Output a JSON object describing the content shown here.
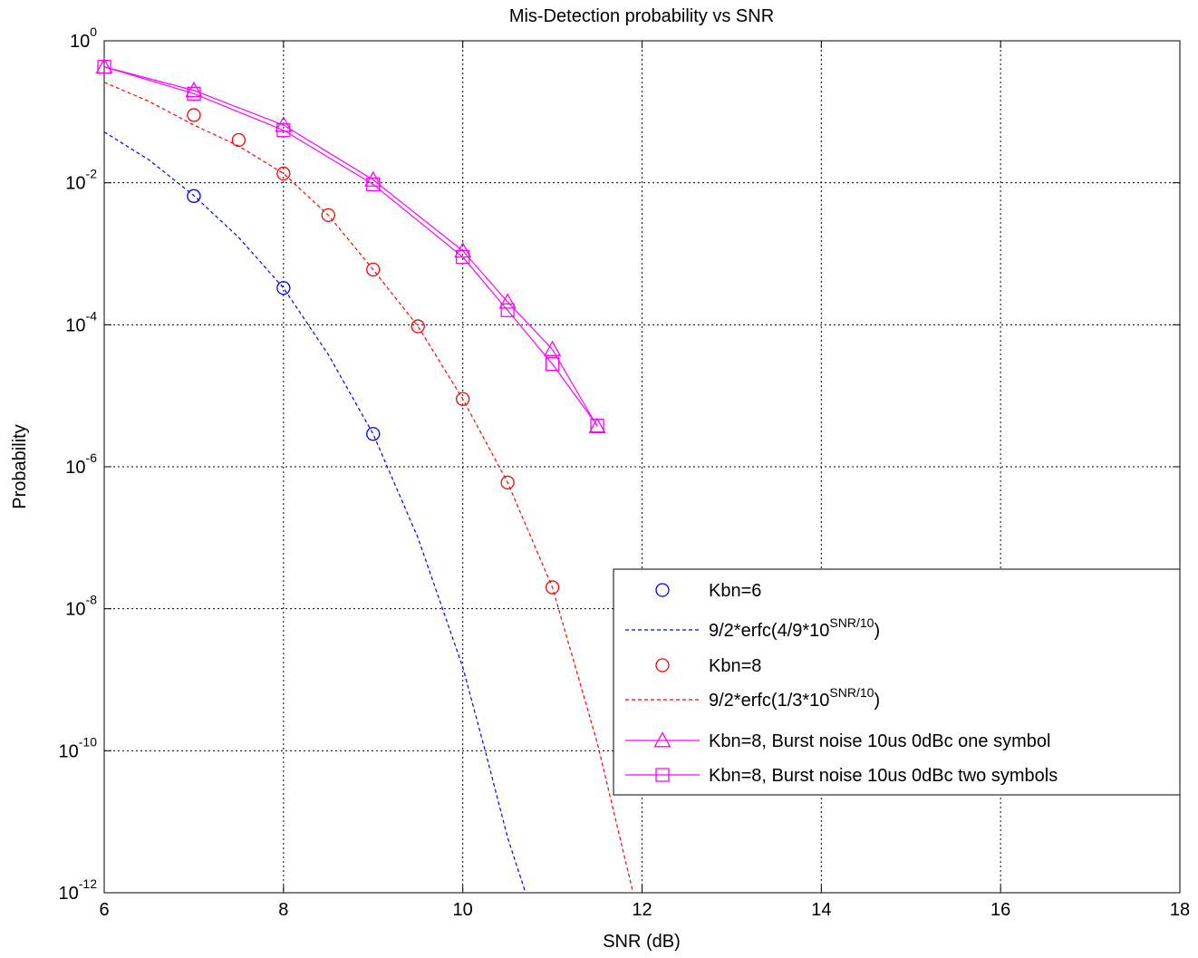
{
  "chart_data": {
    "type": "line",
    "title": "Mis-Detection probability vs SNR",
    "xlabel": "SNR (dB)",
    "ylabel": "Probability",
    "xlim": [
      6,
      18
    ],
    "ylim": [
      1e-12,
      1
    ],
    "y_scale": "log",
    "grid": true,
    "legend_position": "right",
    "x_ticks": [
      "6",
      "8",
      "10",
      "12",
      "14",
      "16",
      "18"
    ],
    "y_ticks": [
      {
        "base": "10",
        "exp": "0",
        "value": 1
      },
      {
        "base": "10",
        "exp": "-2",
        "value": 0.01
      },
      {
        "base": "10",
        "exp": "-4",
        "value": 0.0001
      },
      {
        "base": "10",
        "exp": "-6",
        "value": 1e-06
      },
      {
        "base": "10",
        "exp": "-8",
        "value": 1e-08
      },
      {
        "base": "10",
        "exp": "-10",
        "value": 1e-10
      },
      {
        "base": "10",
        "exp": "-12",
        "value": 1e-12
      }
    ],
    "series": [
      {
        "name": "Kbn=6",
        "color": "#0000ff",
        "style": "markers",
        "marker": "circle",
        "x": [
          7,
          8,
          9
        ],
        "y": [
          0.0065,
          0.00033,
          2.9e-06
        ]
      },
      {
        "name_parts": [
          "9/2*erfc(4/9*10",
          "SNR/10",
          ")"
        ],
        "color": "#0000ff",
        "style": "dashed",
        "x": [
          6,
          6.5,
          7,
          7.5,
          8,
          8.5,
          9,
          9.5,
          10,
          10.25,
          10.5,
          10.7
        ],
        "y": [
          0.052,
          0.021,
          0.0066,
          0.0017,
          0.00033,
          3.8e-05,
          2.9e-06,
          1e-07,
          1.5e-09,
          1e-10,
          6e-12,
          1e-12
        ]
      },
      {
        "name": "Kbn=8",
        "color": "#ff0000",
        "style": "markers",
        "marker": "circle",
        "x": [
          7,
          7.5,
          8,
          8.5,
          9,
          9.5,
          10,
          10.5,
          11
        ],
        "y": [
          0.09,
          0.04,
          0.0135,
          0.0035,
          0.0006,
          9.5e-05,
          9e-06,
          6e-07,
          2e-08
        ]
      },
      {
        "name_parts": [
          "9/2*erfc(1/3*10",
          "SNR/10",
          ")"
        ],
        "color": "#ff0000",
        "style": "dashed",
        "x": [
          6,
          6.5,
          7,
          7.5,
          8,
          8.5,
          9,
          9.5,
          10,
          10.5,
          11,
          11.5,
          11.9
        ],
        "y": [
          0.26,
          0.14,
          0.065,
          0.033,
          0.0135,
          0.0035,
          0.0006,
          9.5e-05,
          9e-06,
          6e-07,
          2e-08,
          1.3e-10,
          1e-12
        ]
      },
      {
        "name": "Kbn=8, Burst noise 10us 0dBc one symbol",
        "color": "#ff00ff",
        "style": "solid",
        "marker": "triangle",
        "x": [
          6,
          7,
          8,
          9,
          10,
          10.5,
          11,
          11.5
        ],
        "y": [
          0.43,
          0.2,
          0.065,
          0.011,
          0.0011,
          0.00021,
          4.5e-05,
          3.7e-06
        ]
      },
      {
        "name": "Kbn=8, Burst noise 10us 0dBc two symbols",
        "color": "#ff00ff",
        "style": "solid",
        "marker": "square",
        "x": [
          6,
          7,
          8,
          9,
          10,
          10.5,
          11,
          11.5
        ],
        "y": [
          0.43,
          0.18,
          0.055,
          0.0095,
          0.0009,
          0.00016,
          2.8e-05,
          3.8e-06
        ]
      }
    ]
  }
}
